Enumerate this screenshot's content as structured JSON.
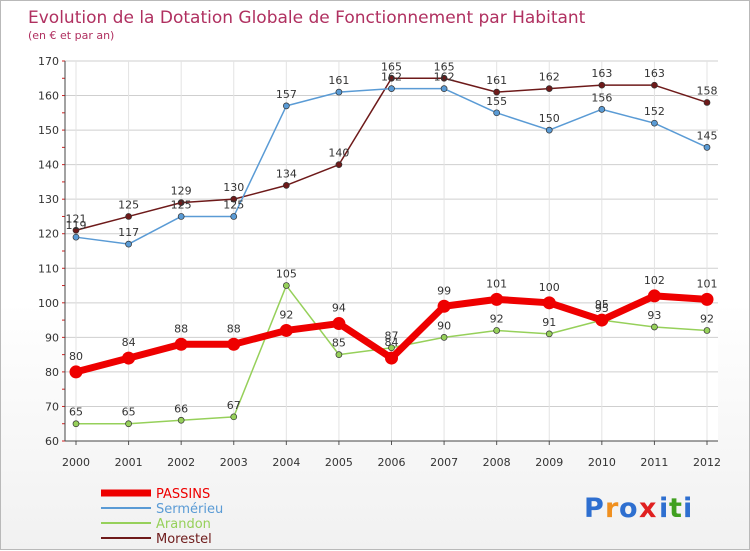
{
  "chart_data": {
    "type": "line",
    "title": "Evolution de la Dotation Globale de Fonctionnement par Habitant",
    "subtitle": "(en € et par an)",
    "xlabel": "",
    "ylabel": "",
    "categories": [
      "2000",
      "2001",
      "2002",
      "2003",
      "2004",
      "2005",
      "2006",
      "2007",
      "2008",
      "2009",
      "2010",
      "2011",
      "2012"
    ],
    "ylim": [
      60,
      170
    ],
    "yticks": [
      60,
      70,
      80,
      90,
      100,
      110,
      120,
      130,
      140,
      150,
      160,
      170
    ],
    "grid": true,
    "legend_position": "bottom-left",
    "series": [
      {
        "name": "Morestel",
        "color": "#6e1a1a",
        "values": [
          121,
          125,
          129,
          130,
          134,
          140,
          165,
          165,
          161,
          162,
          163,
          163,
          158
        ]
      },
      {
        "name": "Sermérieu",
        "color": "#5a9bd5",
        "values": [
          119,
          117,
          125,
          125,
          157,
          161,
          162,
          162,
          155,
          150,
          156,
          152,
          145
        ]
      },
      {
        "name": "Arandon",
        "color": "#96d05a",
        "values": [
          65,
          65,
          66,
          67,
          105,
          85,
          87,
          90,
          92,
          91,
          95,
          93,
          92
        ]
      },
      {
        "name": "PASSINS",
        "color": "#ee0000",
        "values": [
          80,
          84,
          88,
          88,
          92,
          94,
          84,
          99,
          101,
          100,
          95,
          102,
          101
        ]
      }
    ],
    "legend_order": [
      "PASSINS",
      "Sermérieu",
      "Arandon",
      "Morestel"
    ]
  },
  "branding": {
    "logo_letters": [
      "P",
      "r",
      "o",
      "x",
      "i",
      "t",
      "i"
    ],
    "logo_colors": [
      "#2e6fd0",
      "#f09020",
      "#2e6fd0",
      "#e02020",
      "#2e6fd0",
      "#40a020",
      "#2e6fd0"
    ]
  }
}
